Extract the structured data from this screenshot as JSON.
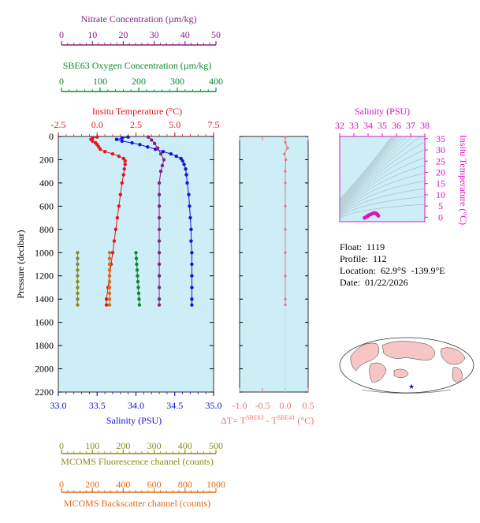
{
  "float_info": {
    "float": "Float:  1119",
    "profile": "Profile:  112",
    "location": "Location:  62.9°S  -139.9°E",
    "date": "Date:  01/22/2026"
  },
  "colors": {
    "temperature": "#e8141c",
    "salinity": "#1414d8",
    "oxygen": "#0a8a2a",
    "nitrate": "#8a208a",
    "fluorescence": "#8b8b1a",
    "backscatter": "#e06a14",
    "delta_t": "#f07070",
    "ts_diagram": "#e010c8",
    "plot_bg": "#cdeef7"
  },
  "chart_data": [
    {
      "type": "line",
      "title": "",
      "ylabel": "Pressure (decibar)",
      "ylim": [
        2200,
        0
      ],
      "y_ticks": [
        "0",
        "200",
        "400",
        "600",
        "800",
        "1000",
        "1200",
        "1400",
        "1600",
        "1800",
        "2000",
        "2200"
      ],
      "axes": {
        "temperature": {
          "label": "Insitu Temperature (°C)",
          "range": [
            -2.5,
            7.5
          ],
          "ticks": [
            "-2.5",
            "0.0",
            "2.5",
            "5.0",
            "7.5"
          ]
        },
        "salinity": {
          "label": "Salinity (PSU)",
          "range": [
            33.0,
            35.0
          ],
          "ticks": [
            "33.0",
            "33.5",
            "34.0",
            "34.5",
            "35.0"
          ]
        },
        "oxygen": {
          "label": "SBE63 Oxygen Concentration (µm/kg)",
          "range": [
            0,
            400
          ],
          "ticks": [
            "0",
            "100",
            "200",
            "300",
            "400"
          ]
        },
        "nitrate": {
          "label": "Nitrate Concentration (µm/kg)",
          "range": [
            0,
            50
          ],
          "ticks": [
            "0",
            "10",
            "20",
            "30",
            "40",
            "50"
          ]
        },
        "fluorescence": {
          "label": "MCOMS Fluorescence channel (counts)",
          "range": [
            0,
            500
          ],
          "ticks": [
            "0",
            "100",
            "200",
            "300",
            "400",
            "500"
          ]
        },
        "backscatter": {
          "label": "MCOMS Backscatter channel (counts)",
          "range": [
            0,
            1000
          ],
          "ticks": [
            "0",
            "200",
            "400",
            "600",
            "800",
            "1000"
          ]
        }
      },
      "series": [
        {
          "key": "temperature",
          "pressure": [
            5,
            15,
            25,
            40,
            55,
            70,
            90,
            110,
            130,
            150,
            170,
            190,
            210,
            240,
            280,
            330,
            400,
            500,
            600,
            700,
            800,
            900,
            1000,
            1100,
            1200,
            1300,
            1400,
            1450
          ],
          "values": [
            0.0,
            -0.3,
            -0.4,
            -0.3,
            -0.1,
            0.0,
            0.1,
            0.2,
            0.5,
            1.0,
            1.4,
            1.7,
            1.8,
            1.8,
            1.75,
            1.7,
            1.6,
            1.5,
            1.4,
            1.3,
            1.2,
            1.1,
            1.0,
            0.9,
            0.8,
            0.7,
            0.6,
            0.6
          ]
        },
        {
          "key": "salinity",
          "pressure": [
            5,
            15,
            25,
            40,
            55,
            70,
            90,
            110,
            130,
            150,
            170,
            190,
            210,
            240,
            280,
            330,
            400,
            500,
            600,
            700,
            800,
            900,
            1000,
            1100,
            1200,
            1300,
            1400,
            1450
          ],
          "values": [
            33.9,
            33.82,
            33.75,
            33.82,
            33.95,
            34.05,
            34.15,
            34.25,
            34.35,
            34.45,
            34.52,
            34.58,
            34.6,
            34.62,
            34.64,
            34.65,
            34.66,
            34.68,
            34.69,
            34.7,
            34.71,
            34.71,
            34.72,
            34.72,
            34.72,
            34.72,
            34.72,
            34.72
          ]
        },
        {
          "key": "oxygen",
          "pressure": [
            1000,
            1050,
            1100,
            1150,
            1200,
            1250,
            1300,
            1350,
            1400,
            1450
          ],
          "values": [
            200,
            201,
            202,
            203,
            204,
            205,
            206,
            207,
            208,
            209
          ]
        },
        {
          "key": "nitrate",
          "pressure": [
            5,
            30,
            60,
            100,
            150,
            200,
            250,
            300,
            400,
            500,
            600,
            700,
            800,
            900,
            1000,
            1100,
            1200,
            1300,
            1400,
            1450
          ],
          "values": [
            29,
            30,
            31,
            32,
            33,
            34,
            33.5,
            33,
            32.5,
            32.5,
            32.5,
            32.5,
            32.5,
            32.5,
            32.5,
            32.5,
            32.5,
            32.5,
            32.5,
            32.5
          ]
        },
        {
          "key": "fluorescence",
          "pressure": [
            1000,
            1050,
            1100,
            1150,
            1200,
            1250,
            1300,
            1350,
            1400,
            1450
          ],
          "values": [
            62,
            62,
            62,
            62,
            62,
            62,
            62,
            62,
            62,
            62
          ]
        },
        {
          "key": "backscatter",
          "pressure": [
            1000,
            1050,
            1100,
            1150,
            1200,
            1250,
            1300,
            1350,
            1400,
            1450
          ],
          "values": [
            330,
            330,
            330,
            330,
            330,
            330,
            330,
            330,
            330,
            330
          ]
        }
      ]
    },
    {
      "type": "line",
      "title": "",
      "xlabel": "ΔT= T",
      "xlabel_sup1": "SBE63",
      "xlabel_mid": " - T",
      "xlabel_sup2": "SBE41",
      "xlabel_end": " (°C)",
      "xlim": [
        -1.0,
        0.5
      ],
      "x_ticks": [
        "-1.0",
        "-0.5",
        "0.0",
        "0.5"
      ],
      "ylim": [
        2200,
        0
      ],
      "series": [
        {
          "key": "delta_t",
          "pressure": [
            5,
            50,
            100,
            150,
            200,
            300,
            400,
            600,
            800,
            1000,
            1200,
            1400,
            1450
          ],
          "values": [
            0.0,
            0.0,
            0.05,
            -0.02,
            0.01,
            0.0,
            0.0,
            0.0,
            0.0,
            0.0,
            0.0,
            0.0,
            0.0
          ]
        }
      ]
    },
    {
      "type": "scatter",
      "title": "",
      "xlabel": "Salinity (PSU)",
      "ylabel": "Insitu Temperature (°C)",
      "xlim": [
        32,
        38
      ],
      "ylim": [
        -2,
        36
      ],
      "x_ticks": [
        "32",
        "33",
        "34",
        "35",
        "36",
        "37",
        "38"
      ],
      "y_ticks": [
        "0",
        "5",
        "10",
        "15",
        "20",
        "25",
        "30",
        "35"
      ],
      "x": [
        33.75,
        33.85,
        33.95,
        34.05,
        34.2,
        34.35,
        34.45,
        34.55,
        34.6,
        34.65,
        34.68,
        34.7,
        34.72
      ],
      "y": [
        -0.3,
        0.0,
        0.4,
        0.9,
        1.3,
        1.7,
        1.8,
        1.7,
        1.5,
        1.2,
        1.0,
        0.8,
        0.6
      ]
    }
  ]
}
